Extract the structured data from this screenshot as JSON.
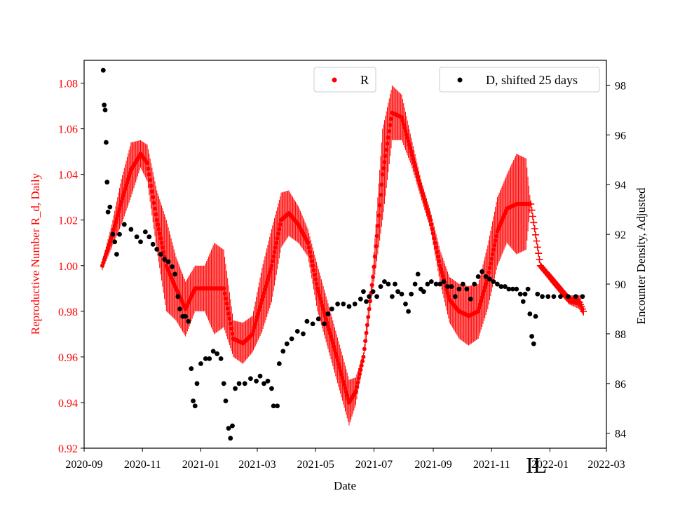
{
  "chart_data": {
    "type": "scatter",
    "xlabel": "Date",
    "ylabel_left": "Reproductive Number R_d, Daily",
    "ylabel_right": "Encounter Density, Adjusted",
    "corner_label": "IL",
    "xlim": [
      "2020-09-01",
      "2022-03-01"
    ],
    "x_ticks": [
      "2020-09",
      "2020-11",
      "2021-01",
      "2021-03",
      "2021-05",
      "2021-07",
      "2021-09",
      "2021-11",
      "2022-01",
      "2022-03"
    ],
    "ylim_left": [
      0.92,
      1.09
    ],
    "y_ticks_left": [
      "0.92",
      "0.94",
      "0.96",
      "0.98",
      "1.00",
      "1.02",
      "1.04",
      "1.06",
      "1.08"
    ],
    "ylim_right": [
      83.4,
      99.0
    ],
    "y_ticks_right": [
      "84",
      "86",
      "88",
      "90",
      "92",
      "94",
      "96",
      "98"
    ],
    "legend_left": "R",
    "legend_right": "D, shifted 25 days",
    "colors": {
      "R": "#ff0000",
      "D": "#000000",
      "left_axis": "#ff0000"
    },
    "series_R": {
      "name": "R",
      "start_date": "2020-09-20",
      "points": [
        [
          "2020-09-20",
          1.0,
          0.002
        ],
        [
          "2020-09-30",
          1.013,
          0.005
        ],
        [
          "2020-10-10",
          1.028,
          0.01
        ],
        [
          "2020-10-20",
          1.042,
          0.012
        ],
        [
          "2020-10-30",
          1.049,
          0.006
        ],
        [
          "2020-11-06",
          1.045,
          0.008
        ],
        [
          "2020-11-16",
          1.02,
          0.013
        ],
        [
          "2020-11-26",
          1.0,
          0.02
        ],
        [
          "2020-12-06",
          0.99,
          0.014
        ],
        [
          "2020-12-16",
          0.981,
          0.012
        ],
        [
          "2020-12-26",
          0.99,
          0.01
        ],
        [
          "2021-01-05",
          0.99,
          0.01
        ],
        [
          "2021-01-15",
          0.99,
          0.02
        ],
        [
          "2021-01-25",
          0.99,
          0.017
        ],
        [
          "2021-02-04",
          0.968,
          0.008
        ],
        [
          "2021-02-14",
          0.966,
          0.009
        ],
        [
          "2021-02-24",
          0.97,
          0.008
        ],
        [
          "2021-03-06",
          0.985,
          0.014
        ],
        [
          "2021-03-16",
          1.0,
          0.016
        ],
        [
          "2021-03-26",
          1.02,
          0.012
        ],
        [
          "2021-04-03",
          1.023,
          0.01
        ],
        [
          "2021-04-13",
          1.018,
          0.008
        ],
        [
          "2021-04-23",
          1.01,
          0.006
        ],
        [
          "2021-05-03",
          0.99,
          0.01
        ],
        [
          "2021-05-13",
          0.975,
          0.01
        ],
        [
          "2021-05-23",
          0.96,
          0.01
        ],
        [
          "2021-06-05",
          0.94,
          0.01
        ],
        [
          "2021-06-12",
          0.945,
          0.006
        ],
        [
          "2021-06-20",
          0.96,
          0.002
        ],
        [
          "2021-06-30",
          0.995,
          0.005
        ],
        [
          "2021-07-10",
          1.04,
          0.02
        ],
        [
          "2021-07-20",
          1.067,
          0.012
        ],
        [
          "2021-07-30",
          1.065,
          0.01
        ],
        [
          "2021-08-09",
          1.05,
          0.006
        ],
        [
          "2021-08-19",
          1.034,
          0.004
        ],
        [
          "2021-08-29",
          1.02,
          0.004
        ],
        [
          "2021-09-08",
          1.0,
          0.007
        ],
        [
          "2021-09-18",
          0.985,
          0.01
        ],
        [
          "2021-09-28",
          0.98,
          0.012
        ],
        [
          "2021-10-08",
          0.978,
          0.013
        ],
        [
          "2021-10-18",
          0.98,
          0.012
        ],
        [
          "2021-10-28",
          0.995,
          0.014
        ],
        [
          "2021-11-07",
          1.015,
          0.015
        ],
        [
          "2021-11-17",
          1.025,
          0.015
        ],
        [
          "2021-11-27",
          1.027,
          0.022
        ],
        [
          "2021-12-07",
          1.027,
          0.02
        ],
        [
          "2021-12-12",
          1.027,
          0.0
        ],
        [
          "2021-12-22",
          1.0,
          0.0
        ],
        [
          "2022-01-01",
          0.995,
          0.002
        ],
        [
          "2022-01-11",
          0.99,
          0.002
        ],
        [
          "2022-01-21",
          0.985,
          0.002
        ],
        [
          "2022-02-01",
          0.984,
          0.003
        ],
        [
          "2022-02-05",
          0.98,
          0.002
        ]
      ]
    },
    "series_D": {
      "name": "D, shifted 25 days",
      "points": [
        [
          "2020-09-21",
          98.6
        ],
        [
          "2020-09-22",
          97.2
        ],
        [
          "2020-09-23",
          97.0
        ],
        [
          "2020-09-24",
          95.7
        ],
        [
          "2020-09-25",
          94.1
        ],
        [
          "2020-09-26",
          92.9
        ],
        [
          "2020-09-28",
          93.1
        ],
        [
          "2020-10-01",
          92.0
        ],
        [
          "2020-10-03",
          91.7
        ],
        [
          "2020-10-05",
          91.2
        ],
        [
          "2020-10-08",
          92.0
        ],
        [
          "2020-10-13",
          92.4
        ],
        [
          "2020-10-20",
          92.2
        ],
        [
          "2020-10-26",
          91.9
        ],
        [
          "2020-10-30",
          91.7
        ],
        [
          "2020-11-04",
          92.1
        ],
        [
          "2020-11-08",
          91.9
        ],
        [
          "2020-11-12",
          91.6
        ],
        [
          "2020-11-16",
          91.4
        ],
        [
          "2020-11-20",
          91.2
        ],
        [
          "2020-11-24",
          91.0
        ],
        [
          "2020-11-28",
          90.9
        ],
        [
          "2020-12-02",
          90.7
        ],
        [
          "2020-12-05",
          90.4
        ],
        [
          "2020-12-08",
          89.5
        ],
        [
          "2020-12-10",
          89.0
        ],
        [
          "2020-12-13",
          88.7
        ],
        [
          "2020-12-16",
          88.7
        ],
        [
          "2020-12-19",
          88.5
        ],
        [
          "2020-12-22",
          86.6
        ],
        [
          "2020-12-24",
          85.3
        ],
        [
          "2020-12-26",
          85.1
        ],
        [
          "2020-12-28",
          86.0
        ],
        [
          "2021-01-01",
          86.8
        ],
        [
          "2021-01-06",
          87.0
        ],
        [
          "2021-01-10",
          87.0
        ],
        [
          "2021-01-14",
          87.3
        ],
        [
          "2021-01-18",
          87.2
        ],
        [
          "2021-01-22",
          87.0
        ],
        [
          "2021-01-25",
          86.0
        ],
        [
          "2021-01-27",
          85.3
        ],
        [
          "2021-01-30",
          84.2
        ],
        [
          "2021-02-01",
          83.8
        ],
        [
          "2021-02-03",
          84.3
        ],
        [
          "2021-02-06",
          85.8
        ],
        [
          "2021-02-10",
          86.0
        ],
        [
          "2021-02-16",
          86.0
        ],
        [
          "2021-02-22",
          86.2
        ],
        [
          "2021-02-28",
          86.1
        ],
        [
          "2021-03-04",
          86.3
        ],
        [
          "2021-03-08",
          86.0
        ],
        [
          "2021-03-12",
          86.1
        ],
        [
          "2021-03-16",
          85.8
        ],
        [
          "2021-03-18",
          85.1
        ],
        [
          "2021-03-22",
          85.1
        ],
        [
          "2021-03-24",
          86.8
        ],
        [
          "2021-03-28",
          87.3
        ],
        [
          "2021-04-01",
          87.6
        ],
        [
          "2021-04-06",
          87.8
        ],
        [
          "2021-04-12",
          88.1
        ],
        [
          "2021-04-18",
          88.0
        ],
        [
          "2021-04-22",
          88.5
        ],
        [
          "2021-04-28",
          88.4
        ],
        [
          "2021-05-04",
          88.6
        ],
        [
          "2021-05-10",
          88.4
        ],
        [
          "2021-05-14",
          88.8
        ],
        [
          "2021-05-18",
          89.0
        ],
        [
          "2021-05-24",
          89.2
        ],
        [
          "2021-05-30",
          89.2
        ],
        [
          "2021-06-05",
          89.1
        ],
        [
          "2021-06-11",
          89.2
        ],
        [
          "2021-06-17",
          89.4
        ],
        [
          "2021-06-20",
          89.7
        ],
        [
          "2021-06-23",
          89.3
        ],
        [
          "2021-06-26",
          89.5
        ],
        [
          "2021-06-30",
          89.7
        ],
        [
          "2021-07-04",
          89.5
        ],
        [
          "2021-07-08",
          89.9
        ],
        [
          "2021-07-12",
          90.1
        ],
        [
          "2021-07-16",
          90.0
        ],
        [
          "2021-07-20",
          89.5
        ],
        [
          "2021-07-23",
          90.0
        ],
        [
          "2021-07-26",
          89.7
        ],
        [
          "2021-07-30",
          89.6
        ],
        [
          "2021-08-03",
          89.2
        ],
        [
          "2021-08-06",
          88.9
        ],
        [
          "2021-08-09",
          89.6
        ],
        [
          "2021-08-13",
          90.0
        ],
        [
          "2021-08-16",
          90.4
        ],
        [
          "2021-08-19",
          89.8
        ],
        [
          "2021-08-22",
          89.7
        ],
        [
          "2021-08-26",
          90.0
        ],
        [
          "2021-08-30",
          90.1
        ],
        [
          "2021-09-04",
          90.0
        ],
        [
          "2021-09-08",
          90.0
        ],
        [
          "2021-09-12",
          90.1
        ],
        [
          "2021-09-16",
          89.9
        ],
        [
          "2021-09-20",
          89.9
        ],
        [
          "2021-09-24",
          89.5
        ],
        [
          "2021-09-28",
          89.8
        ],
        [
          "2021-10-02",
          90.0
        ],
        [
          "2021-10-06",
          89.8
        ],
        [
          "2021-10-10",
          89.4
        ],
        [
          "2021-10-14",
          90.0
        ],
        [
          "2021-10-18",
          90.3
        ],
        [
          "2021-10-22",
          90.5
        ],
        [
          "2021-10-26",
          90.3
        ],
        [
          "2021-10-30",
          90.2
        ],
        [
          "2021-11-03",
          90.1
        ],
        [
          "2021-11-07",
          90.0
        ],
        [
          "2021-11-11",
          89.9
        ],
        [
          "2021-11-15",
          89.9
        ],
        [
          "2021-11-19",
          89.8
        ],
        [
          "2021-11-23",
          89.8
        ],
        [
          "2021-11-27",
          89.8
        ],
        [
          "2021-12-01",
          89.6
        ],
        [
          "2021-12-04",
          89.3
        ],
        [
          "2021-12-06",
          89.6
        ],
        [
          "2021-12-09",
          89.8
        ],
        [
          "2021-12-11",
          88.8
        ],
        [
          "2021-12-13",
          87.9
        ],
        [
          "2021-12-15",
          87.6
        ],
        [
          "2021-12-17",
          88.7
        ],
        [
          "2021-12-19",
          89.6
        ],
        [
          "2021-12-24",
          89.5
        ],
        [
          "2021-12-30",
          89.5
        ],
        [
          "2022-01-05",
          89.5
        ],
        [
          "2022-01-12",
          89.5
        ],
        [
          "2022-01-20",
          89.5
        ],
        [
          "2022-01-28",
          89.5
        ],
        [
          "2022-02-04",
          89.5
        ]
      ]
    }
  }
}
